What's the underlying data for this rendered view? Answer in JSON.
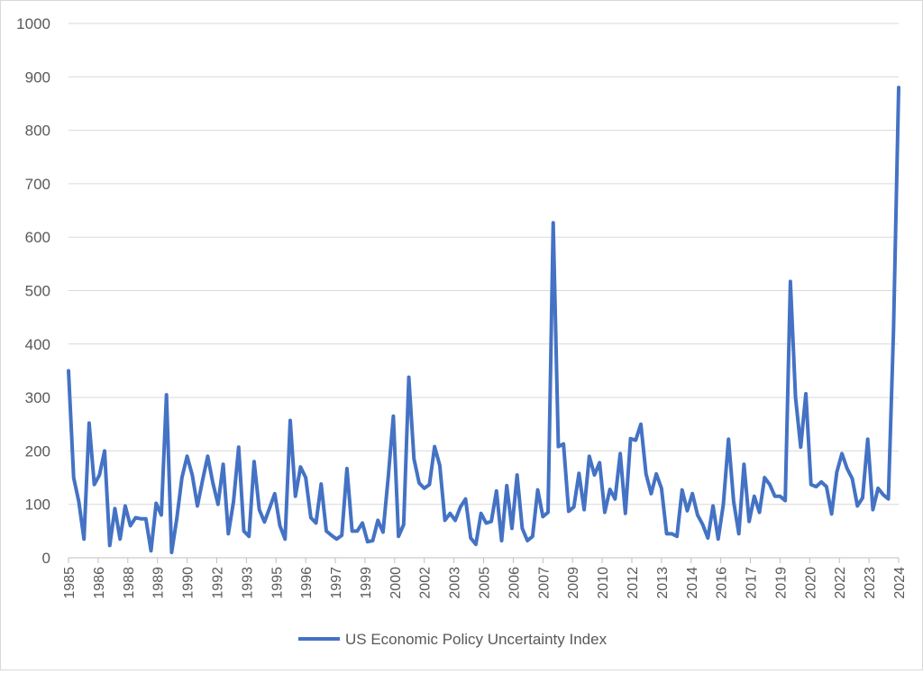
{
  "chart_data": {
    "type": "line",
    "title": "",
    "xlabel": "",
    "ylabel": "",
    "ylim": [
      0,
      1000
    ],
    "yticks": [
      "0",
      "100",
      "200",
      "300",
      "400",
      "500",
      "600",
      "700",
      "800",
      "900",
      "1000"
    ],
    "xtick_labels": [
      "1985",
      "1986",
      "1988",
      "1989",
      "1990",
      "1992",
      "1993",
      "1995",
      "1996",
      "1997",
      "1999",
      "2000",
      "2002",
      "2003",
      "2005",
      "2006",
      "2007",
      "2009",
      "2010",
      "2012",
      "2013",
      "2014",
      "2016",
      "2017",
      "2019",
      "2020",
      "2022",
      "2023",
      "2024"
    ],
    "grid": "horizontal",
    "legend": "bottom",
    "series": [
      {
        "name": "US Economic Policy Uncertainty Index",
        "color": "#4472c4",
        "values": [
          350,
          150,
          105,
          35,
          252,
          137,
          155,
          200,
          23,
          92,
          35,
          97,
          60,
          75,
          73,
          73,
          13,
          102,
          80,
          305,
          10,
          73,
          150,
          190,
          155,
          97,
          145,
          190,
          140,
          100,
          175,
          45,
          105,
          207,
          50,
          40,
          180,
          90,
          67,
          93,
          120,
          60,
          35,
          257,
          115,
          170,
          150,
          75,
          65,
          138,
          50,
          42,
          35,
          42,
          167,
          50,
          50,
          65,
          30,
          32,
          70,
          48,
          150,
          265,
          40,
          62,
          338,
          185,
          140,
          130,
          137,
          208,
          173,
          70,
          83,
          70,
          95,
          110,
          37,
          25,
          83,
          65,
          68,
          125,
          32,
          135,
          55,
          155,
          55,
          32,
          40,
          127,
          77,
          85,
          627,
          208,
          213,
          87,
          95,
          158,
          90,
          190,
          155,
          178,
          85,
          128,
          110,
          195,
          83,
          223,
          220,
          250,
          157,
          120,
          157,
          130,
          45,
          45,
          40,
          127,
          88,
          120,
          80,
          62,
          37,
          97,
          35,
          100,
          222,
          105,
          45,
          175,
          68,
          115,
          85,
          150,
          137,
          115,
          115,
          107,
          517,
          300,
          207,
          307,
          137,
          133,
          142,
          133,
          82,
          160,
          195,
          167,
          148,
          97,
          112,
          222,
          90,
          130,
          118,
          110,
          425,
          880
        ]
      }
    ]
  }
}
